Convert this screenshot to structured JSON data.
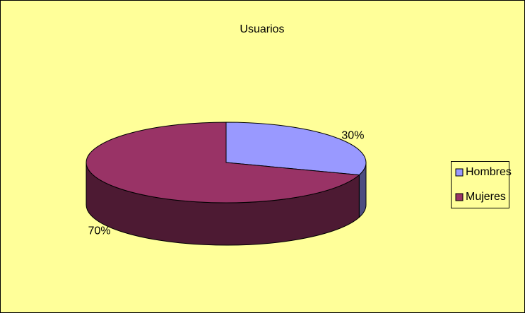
{
  "chart_data": {
    "type": "pie",
    "title": "Usuarios",
    "categories": [
      "Hombres",
      "Mujeres"
    ],
    "values": [
      30,
      70
    ],
    "value_labels": [
      "30%",
      "70%"
    ],
    "colors": [
      "#9999ff",
      "#993366"
    ],
    "legend": "right"
  }
}
